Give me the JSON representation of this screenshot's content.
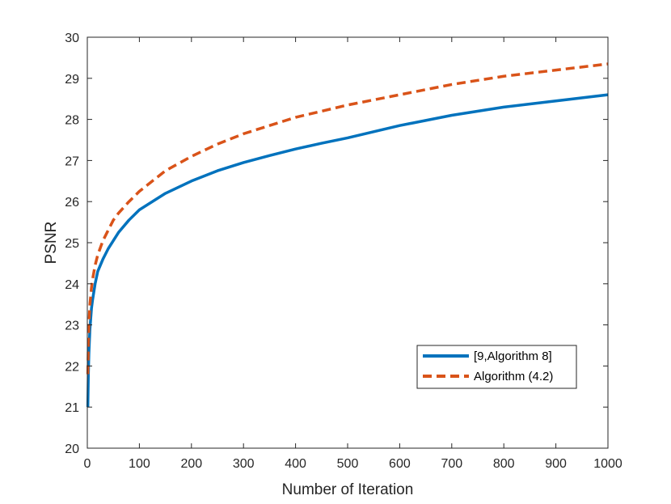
{
  "chart_data": {
    "type": "line",
    "title": "",
    "xlabel": "Number of Iteration",
    "ylabel": "PSNR",
    "xlim": [
      0,
      1000
    ],
    "ylim": [
      20,
      30
    ],
    "xticks": [
      0,
      100,
      200,
      300,
      400,
      500,
      600,
      700,
      800,
      900,
      1000
    ],
    "yticks": [
      20,
      21,
      22,
      23,
      24,
      25,
      26,
      27,
      28,
      29,
      30
    ],
    "grid": false,
    "legend_position": "lower-right",
    "series": [
      {
        "name": "[9,Algorithm 8]",
        "color": "#0072BD",
        "style": "solid",
        "x": [
          1,
          2,
          3,
          5,
          8,
          10,
          15,
          20,
          30,
          40,
          50,
          60,
          80,
          100,
          150,
          200,
          250,
          300,
          350,
          400,
          450,
          500,
          600,
          700,
          800,
          900,
          1000
        ],
        "y": [
          21.0,
          21.8,
          22.3,
          22.9,
          23.4,
          23.6,
          24.0,
          24.3,
          24.6,
          24.85,
          25.05,
          25.25,
          25.55,
          25.8,
          26.2,
          26.5,
          26.75,
          26.95,
          27.12,
          27.28,
          27.42,
          27.55,
          27.85,
          28.1,
          28.3,
          28.45,
          28.6
        ]
      },
      {
        "name": "Algorithm (4.2)",
        "color": "#D95319",
        "style": "dashed",
        "x": [
          1,
          2,
          3,
          5,
          8,
          10,
          15,
          20,
          30,
          40,
          50,
          60,
          80,
          100,
          150,
          200,
          250,
          300,
          350,
          400,
          450,
          500,
          600,
          700,
          800,
          900,
          1000
        ],
        "y": [
          21.8,
          22.5,
          23.0,
          23.5,
          23.9,
          24.1,
          24.45,
          24.7,
          25.05,
          25.3,
          25.55,
          25.72,
          26.0,
          26.25,
          26.75,
          27.1,
          27.4,
          27.65,
          27.85,
          28.05,
          28.2,
          28.35,
          28.6,
          28.85,
          29.05,
          29.2,
          29.35
        ]
      }
    ]
  }
}
